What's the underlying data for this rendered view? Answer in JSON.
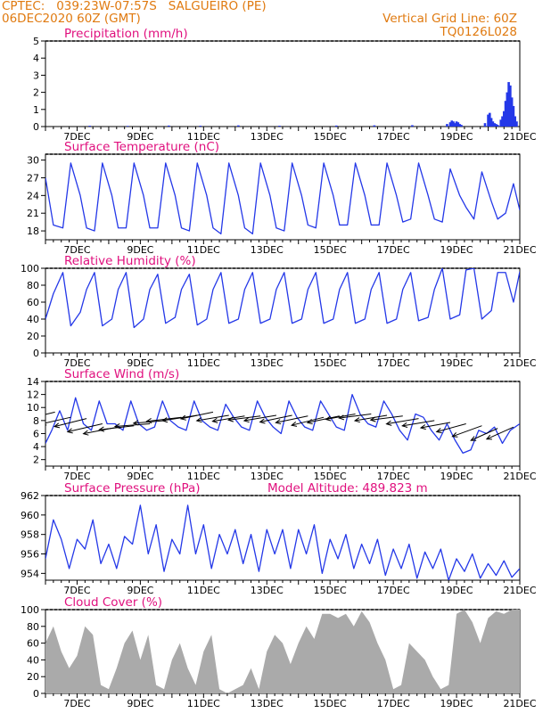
{
  "header": {
    "line1": "CPTEC:   039:23W-07:57S   SALGUEIRO (PE)",
    "line2": "06DEC2020 60Z (GMT)",
    "grid_note": "Vertical Grid Line: 60Z",
    "code": "TQ0126L028"
  },
  "colors": {
    "header": "#e07a10",
    "title": "#e0107e",
    "series": "#2438e8",
    "cloud": "#aaaaaa",
    "wind_arrow": "#000000"
  },
  "chart_data": [
    {
      "type": "bar",
      "title": "Precipitation (mm/h)",
      "x_range": [
        6.0,
        21.0
      ],
      "x_ticks": [
        "7DEC",
        "9DEC",
        "11DEC",
        "13DEC",
        "15DEC",
        "17DEC",
        "19DEC",
        "21DEC"
      ],
      "ylim": [
        0,
        5
      ],
      "yticks": [
        0,
        1,
        2,
        3,
        4,
        5
      ],
      "grid": false,
      "x": [
        7.4,
        8.6,
        9.9,
        10.9,
        12.1,
        13.4,
        15.2,
        16.4,
        17.6,
        18.7,
        18.8,
        18.85,
        18.9,
        18.95,
        19.0,
        19.05,
        19.1,
        19.15,
        19.9,
        20.0,
        20.05,
        20.1,
        20.15,
        20.2,
        20.25,
        20.3,
        20.4,
        20.45,
        20.5,
        20.55,
        20.6,
        20.65,
        20.7,
        20.75,
        20.8,
        20.85,
        20.9
      ],
      "values": [
        0.05,
        0.04,
        0.06,
        0.05,
        0.07,
        0.05,
        0.06,
        0.07,
        0.08,
        0.15,
        0.25,
        0.35,
        0.3,
        0.2,
        0.3,
        0.25,
        0.15,
        0.1,
        0.2,
        0.7,
        0.8,
        0.5,
        0.3,
        0.2,
        0.15,
        0.1,
        0.4,
        0.6,
        0.9,
        1.5,
        2.0,
        2.6,
        2.4,
        1.7,
        1.2,
        0.6,
        0.3
      ]
    },
    {
      "type": "line",
      "title": "Surface Temperature (nC)",
      "x_range": [
        6.0,
        21.0
      ],
      "x_ticks": [
        "7DEC",
        "9DEC",
        "11DEC",
        "13DEC",
        "15DEC",
        "17DEC",
        "19DEC",
        "21DEC"
      ],
      "ylim": [
        16.5,
        31
      ],
      "yticks": [
        18,
        21,
        24,
        27,
        30
      ],
      "grid": false,
      "x": [
        6.0,
        6.25,
        6.55,
        6.8,
        7.1,
        7.3,
        7.55,
        7.8,
        8.1,
        8.3,
        8.55,
        8.8,
        9.1,
        9.3,
        9.55,
        9.8,
        10.1,
        10.3,
        10.55,
        10.8,
        11.1,
        11.3,
        11.55,
        11.8,
        12.1,
        12.3,
        12.55,
        12.8,
        13.1,
        13.3,
        13.55,
        13.8,
        14.1,
        14.3,
        14.55,
        14.8,
        15.1,
        15.3,
        15.55,
        15.8,
        16.1,
        16.3,
        16.55,
        16.8,
        17.1,
        17.3,
        17.55,
        17.8,
        18.1,
        18.3,
        18.55,
        18.8,
        19.1,
        19.3,
        19.55,
        19.8,
        20.1,
        20.3,
        20.55,
        20.8,
        21.0
      ],
      "values": [
        27,
        19,
        18.5,
        29.5,
        24,
        18.5,
        18,
        29.5,
        24,
        18.5,
        18.5,
        29.5,
        24,
        18.5,
        18.5,
        29.5,
        24,
        18.5,
        18,
        29.5,
        24,
        18.5,
        17.5,
        29.5,
        24,
        18.5,
        17.5,
        29.5,
        24,
        18.5,
        18,
        29.5,
        24,
        19,
        18.5,
        29.5,
        24,
        19,
        19,
        29.5,
        24,
        19,
        19,
        29.5,
        24,
        19.5,
        20,
        29.5,
        24,
        20,
        19.5,
        28.5,
        24,
        22,
        20,
        28,
        23,
        20,
        21,
        26,
        21.5
      ]
    },
    {
      "type": "line",
      "title": "Relative Humidity (%)",
      "x_range": [
        6.0,
        21.0
      ],
      "x_ticks": [
        "7DEC",
        "9DEC",
        "11DEC",
        "13DEC",
        "15DEC",
        "17DEC",
        "19DEC",
        "21DEC"
      ],
      "ylim": [
        0,
        100
      ],
      "yticks": [
        0,
        20,
        40,
        60,
        80,
        100
      ],
      "grid": false,
      "x": [
        6.0,
        6.25,
        6.55,
        6.8,
        7.1,
        7.3,
        7.55,
        7.8,
        8.1,
        8.3,
        8.55,
        8.8,
        9.1,
        9.3,
        9.55,
        9.8,
        10.1,
        10.3,
        10.55,
        10.8,
        11.1,
        11.3,
        11.55,
        11.8,
        12.1,
        12.3,
        12.55,
        12.8,
        13.1,
        13.3,
        13.55,
        13.8,
        14.1,
        14.3,
        14.55,
        14.8,
        15.1,
        15.3,
        15.55,
        15.8,
        16.1,
        16.3,
        16.55,
        16.8,
        17.1,
        17.3,
        17.55,
        17.8,
        18.1,
        18.3,
        18.55,
        18.8,
        19.1,
        19.3,
        19.55,
        19.8,
        20.1,
        20.3,
        20.55,
        20.8,
        21.0
      ],
      "values": [
        40,
        70,
        95,
        32,
        48,
        75,
        95,
        32,
        40,
        75,
        95,
        30,
        40,
        75,
        93,
        35,
        42,
        75,
        93,
        33,
        40,
        75,
        95,
        35,
        40,
        75,
        95,
        35,
        40,
        75,
        95,
        35,
        40,
        75,
        95,
        35,
        40,
        75,
        95,
        35,
        40,
        75,
        95,
        35,
        40,
        75,
        95,
        38,
        42,
        75,
        100,
        40,
        45,
        98,
        100,
        40,
        50,
        95,
        95,
        60,
        96
      ]
    },
    {
      "type": "line",
      "title": "Surface Wind (m/s)",
      "x_range": [
        6.0,
        21.0
      ],
      "x_ticks": [
        "7DEC",
        "9DEC",
        "11DEC",
        "13DEC",
        "15DEC",
        "17DEC",
        "19DEC",
        "21DEC"
      ],
      "ylim": [
        1,
        14
      ],
      "yticks": [
        2,
        4,
        6,
        8,
        10,
        12,
        14
      ],
      "grid": false,
      "x": [
        6.0,
        6.2,
        6.45,
        6.7,
        6.95,
        7.2,
        7.45,
        7.7,
        7.95,
        8.2,
        8.45,
        8.7,
        8.95,
        9.2,
        9.45,
        9.7,
        9.95,
        10.2,
        10.45,
        10.7,
        10.95,
        11.2,
        11.45,
        11.7,
        11.95,
        12.2,
        12.45,
        12.7,
        12.95,
        13.2,
        13.45,
        13.7,
        13.95,
        14.2,
        14.45,
        14.7,
        14.95,
        15.2,
        15.45,
        15.7,
        15.95,
        16.2,
        16.45,
        16.7,
        16.95,
        17.2,
        17.45,
        17.7,
        17.95,
        18.2,
        18.45,
        18.7,
        18.95,
        19.2,
        19.45,
        19.7,
        19.95,
        20.2,
        20.45,
        20.7,
        21.0
      ],
      "values": [
        4.5,
        6.5,
        9.5,
        6.5,
        11.5,
        7.5,
        6.5,
        11,
        7.5,
        7.5,
        6.5,
        11,
        7.5,
        6.5,
        7,
        11,
        8,
        7,
        6.5,
        11,
        8,
        7,
        6.5,
        10.5,
        8.5,
        7,
        6.5,
        11,
        8.5,
        7,
        6,
        11,
        8.5,
        7,
        6.5,
        11,
        9,
        7,
        6.5,
        12,
        9,
        7.5,
        7,
        11,
        9,
        6.5,
        5,
        9,
        8.5,
        6.5,
        5,
        7.5,
        5,
        3,
        3.5,
        6.5,
        6,
        7,
        4.5,
        6.5,
        7.5
      ],
      "wind_arrows": {
        "x": [
          6.3,
          6.8,
          7.3,
          7.8,
          8.3,
          8.8,
          9.3,
          9.8,
          10.3,
          10.8,
          11.3,
          11.8,
          12.3,
          12.8,
          13.3,
          13.8,
          14.3,
          14.8,
          15.3,
          15.8,
          16.3,
          16.8,
          17.3,
          17.8,
          18.3,
          18.8,
          19.3,
          19.8,
          20.3,
          20.8
        ],
        "y": [
          9.3,
          8.5,
          8.3,
          7.5,
          7,
          7.2,
          7.5,
          8,
          8.5,
          8.8,
          9.3,
          8.8,
          8.7,
          8.7,
          8.8,
          8.8,
          8.7,
          8.5,
          8.7,
          9,
          9,
          8.8,
          8.7,
          8.3,
          8,
          7.7,
          7.5,
          7.2,
          6.8,
          7
        ],
        "u": [
          1.0,
          1.1,
          1.2,
          1.3,
          1.3,
          1.3,
          1.3,
          1.2,
          1.3,
          1.3,
          1.2,
          1.2,
          1.2,
          1.2,
          1.2,
          1.2,
          1.2,
          1.2,
          1.2,
          1.1,
          1.2,
          1.2,
          1.2,
          1.2,
          1.2,
          1.1,
          1.1,
          1.1,
          1.0,
          1.0
        ],
        "v": [
          0.25,
          0.25,
          0.3,
          0.3,
          0.25,
          0.15,
          0.1,
          0.1,
          0.15,
          0.2,
          0.25,
          0.2,
          0.2,
          0.15,
          0.2,
          0.25,
          0.25,
          0.3,
          0.25,
          0.2,
          0.15,
          0.2,
          0.15,
          0.2,
          0.2,
          0.2,
          0.3,
          0.4,
          0.45,
          0.45
        ]
      }
    },
    {
      "type": "line",
      "title": "Surface Pressure (hPa)",
      "annotation": "Model Altitude: 489.823 m",
      "x_range": [
        6.0,
        21.0
      ],
      "x_ticks": [
        "7DEC",
        "9DEC",
        "11DEC",
        "13DEC",
        "15DEC",
        "17DEC",
        "19DEC",
        "21DEC"
      ],
      "ylim": [
        953.3,
        962
      ],
      "yticks": [
        954,
        956,
        958,
        960,
        962
      ],
      "grid": false,
      "x": [
        6.0,
        6.25,
        6.5,
        6.75,
        7.0,
        7.25,
        7.5,
        7.75,
        8.0,
        8.25,
        8.5,
        8.75,
        9.0,
        9.25,
        9.5,
        9.75,
        10.0,
        10.25,
        10.5,
        10.75,
        11.0,
        11.25,
        11.5,
        11.75,
        12.0,
        12.25,
        12.5,
        12.75,
        13.0,
        13.25,
        13.5,
        13.75,
        14.0,
        14.25,
        14.5,
        14.75,
        15.0,
        15.25,
        15.5,
        15.75,
        16.0,
        16.25,
        16.5,
        16.75,
        17.0,
        17.25,
        17.5,
        17.75,
        18.0,
        18.25,
        18.5,
        18.75,
        19.0,
        19.25,
        19.5,
        19.75,
        20.0,
        20.25,
        20.5,
        20.75,
        21.0
      ],
      "values": [
        955.5,
        959.5,
        957.5,
        954.5,
        957.5,
        956.5,
        959.5,
        955,
        957,
        954.5,
        957.8,
        957,
        961,
        956,
        959,
        954.2,
        957.5,
        956,
        961,
        956,
        959,
        954.5,
        958,
        956,
        958.5,
        955,
        958,
        954.2,
        958.5,
        956,
        958.5,
        954.5,
        958.5,
        956,
        959,
        954,
        957.5,
        955.5,
        958,
        954.5,
        957,
        955,
        957.5,
        953.8,
        956.5,
        954.5,
        957,
        953.5,
        956.2,
        954.5,
        956.5,
        953.3,
        955.5,
        954.2,
        956,
        953.5,
        955,
        953.8,
        955.3,
        953.6,
        954.5
      ]
    },
    {
      "type": "area",
      "title": "Cloud Cover (%)",
      "x_range": [
        6.0,
        21.0
      ],
      "x_ticks": [
        "7DEC",
        "9DEC",
        "11DEC",
        "13DEC",
        "15DEC",
        "17DEC",
        "19DEC",
        "21DEC"
      ],
      "ylim": [
        0,
        100
      ],
      "yticks": [
        0,
        20,
        40,
        60,
        80,
        100
      ],
      "grid": false,
      "x": [
        6.0,
        6.25,
        6.5,
        6.75,
        7.0,
        7.25,
        7.5,
        7.75,
        8.0,
        8.25,
        8.5,
        8.75,
        9.0,
        9.25,
        9.5,
        9.75,
        10.0,
        10.25,
        10.5,
        10.75,
        11.0,
        11.25,
        11.5,
        11.75,
        12.0,
        12.25,
        12.5,
        12.75,
        13.0,
        13.25,
        13.5,
        13.75,
        14.0,
        14.25,
        14.5,
        14.75,
        15.0,
        15.25,
        15.5,
        15.75,
        16.0,
        16.25,
        16.5,
        16.75,
        17.0,
        17.25,
        17.5,
        17.75,
        18.0,
        18.25,
        18.5,
        18.75,
        19.0,
        19.25,
        19.5,
        19.75,
        20.0,
        20.25,
        20.5,
        20.75,
        21.0
      ],
      "values": [
        60,
        80,
        50,
        30,
        45,
        80,
        70,
        10,
        5,
        30,
        60,
        75,
        40,
        70,
        10,
        5,
        40,
        60,
        30,
        10,
        50,
        70,
        5,
        0,
        5,
        10,
        30,
        5,
        50,
        70,
        60,
        35,
        60,
        80,
        65,
        95,
        95,
        90,
        95,
        80,
        98,
        85,
        60,
        40,
        5,
        10,
        60,
        50,
        40,
        20,
        5,
        10,
        95,
        100,
        85,
        60,
        90,
        98,
        95,
        100,
        100
      ]
    }
  ]
}
